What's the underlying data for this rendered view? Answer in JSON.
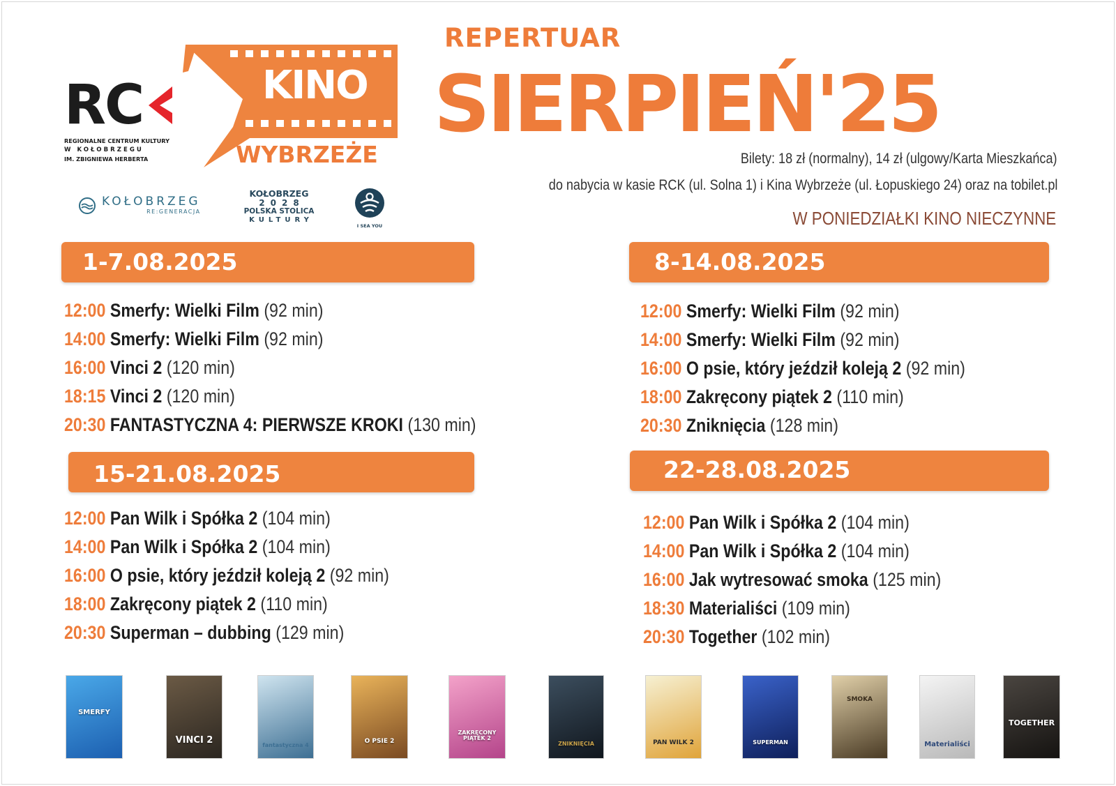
{
  "header": {
    "repertuar": "REPERTUAR",
    "month": "SIERPIEŃ'25",
    "tickets_line": "Bilety: 18 zł (normalny), 14 zł (ulgowy/Karta Mieszkańca)",
    "sales_line": "do nabycia w kasie RCK (ul. Solna 1) i Kina Wybrzeże (ul. Łopuskiego 24) oraz na tobilet.pl",
    "closed_notice": "W PONIEDZIAŁKI KINO NIECZYNNE"
  },
  "logos": {
    "rck": {
      "letters": "RC",
      "line1": "REGIONALNE CENTRUM KULTURY",
      "line2": "W KOŁOBRZEGU",
      "line3": "IM. ZBIGNIEWA HERBERTA"
    },
    "kino": {
      "kino": "KINO",
      "wybrzeze": "WYBRZEŻE"
    },
    "kolobrzeg": {
      "title": "KOŁOBRZEG",
      "sub": "RE:GENERACJA"
    },
    "esk": {
      "line1": "KOŁOBRZEG",
      "line2": "2028",
      "line3": "POLSKA STOLICA",
      "line4": "KULTURY"
    },
    "isea": {
      "label": "I SEA YOU"
    }
  },
  "weeks": [
    {
      "range": "1-7.08.2025",
      "shows": [
        {
          "time": "12:00",
          "title": "Smerfy: Wielki Film",
          "duration": "(92 min)"
        },
        {
          "time": "14:00",
          "title": "Smerfy: Wielki Film",
          "duration": "(92 min)"
        },
        {
          "time": "16:00",
          "title": "Vinci 2",
          "duration": "(120 min)"
        },
        {
          "time": "18:15",
          "title": "Vinci 2",
          "duration": "(120 min)"
        },
        {
          "time": "20:30",
          "title": "FANTASTYCZNA 4: PIERWSZE KROKI",
          "duration": "(130 min)"
        }
      ]
    },
    {
      "range": "8-14.08.2025",
      "shows": [
        {
          "time": "12:00",
          "title": "Smerfy: Wielki Film",
          "duration": "(92 min)"
        },
        {
          "time": "14:00",
          "title": "Smerfy: Wielki Film",
          "duration": "(92 min)"
        },
        {
          "time": "16:00",
          "title": "O psie, który jeździł koleją 2",
          "duration": "(92 min)"
        },
        {
          "time": "18:00",
          "title": "Zakręcony piątek 2",
          "duration": "(110 min)"
        },
        {
          "time": "20:30",
          "title": "Zniknięcia",
          "duration": "(128 min)"
        }
      ]
    },
    {
      "range": "15-21.08.2025",
      "shows": [
        {
          "time": "12:00",
          "title": "Pan Wilk i Spółka 2",
          "duration": "(104 min)"
        },
        {
          "time": "14:00",
          "title": "Pan Wilk i Spółka 2",
          "duration": "(104 min)"
        },
        {
          "time": "16:00",
          "title": "O psie, który jeździł koleją 2",
          "duration": "(92 min)"
        },
        {
          "time": "18:00",
          "title": "Zakręcony piątek 2",
          "duration": "(110 min)"
        },
        {
          "time": "20:30",
          "title": "Superman – dubbing",
          "duration": "(129 min)"
        }
      ]
    },
    {
      "range": "22-28.08.2025",
      "shows": [
        {
          "time": "12:00",
          "title": "Pan Wilk i Spółka 2",
          "duration": "(104 min)"
        },
        {
          "time": "14:00",
          "title": "Pan Wilk i Spółka 2",
          "duration": "(104 min)"
        },
        {
          "time": "16:00",
          "title": "Jak wytresować smoka",
          "duration": "(125 min)"
        },
        {
          "time": "18:30",
          "title": "Materialiści",
          "duration": "(109 min)"
        },
        {
          "time": "20:30",
          "title": "Together",
          "duration": "(102 min)"
        }
      ]
    }
  ],
  "posters": [
    {
      "title": "SMERFY",
      "colors": [
        "#4aa8e8",
        "#1c5fb0"
      ]
    },
    {
      "title": "VINCI 2",
      "colors": [
        "#6b5a45",
        "#2b2620"
      ]
    },
    {
      "title": "fantastyczna 4",
      "colors": [
        "#cfe4ef",
        "#3d6f93"
      ]
    },
    {
      "title": "O PSIE 2",
      "colors": [
        "#e9b35a",
        "#7a4a22"
      ]
    },
    {
      "title": "ZAKRĘCONY PIĄTEK 2",
      "colors": [
        "#f3a2c9",
        "#b4448a"
      ]
    },
    {
      "title": "ZNIKNIĘCIA",
      "colors": [
        "#3c4e5e",
        "#10161d"
      ]
    },
    {
      "title": "PAN WILK 2",
      "colors": [
        "#f6f0d2",
        "#e0a43a"
      ]
    },
    {
      "title": "SUPERMAN",
      "colors": [
        "#3a62c9",
        "#0e1f5a"
      ]
    },
    {
      "title": "SMOKA",
      "colors": [
        "#e0cfa8",
        "#4a3b25"
      ]
    },
    {
      "title": "Materialiści",
      "colors": [
        "#f4f4f4",
        "#b9b9b9"
      ]
    },
    {
      "title": "TOGETHER",
      "colors": [
        "#4a4540",
        "#151311"
      ]
    }
  ],
  "colors": {
    "accent": "#ee7c3a",
    "week_bar": "#ee843f",
    "text": "#1e1e1e",
    "notice": "#8a4a36"
  }
}
